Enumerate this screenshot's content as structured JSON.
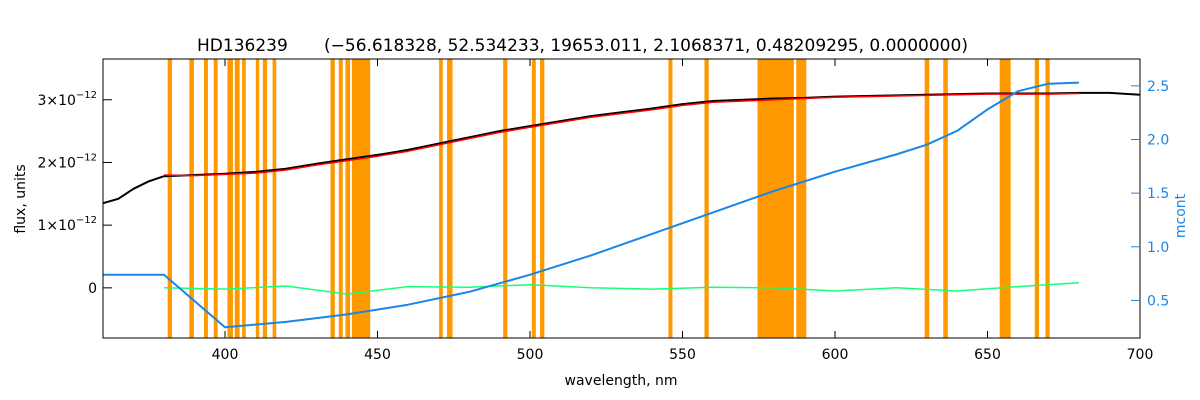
{
  "chart_data": {
    "type": "line",
    "title": {
      "star": "HD136239",
      "params": "(−56.618328, 52.534233, 19653.011, 2.1068371, 0.48209295, 0.0000000)"
    },
    "xlabel": "wavelength, nm",
    "ylabel": "flux, units",
    "ylabel_right": "mcont",
    "xlim": [
      360,
      700
    ],
    "ylim": [
      -8e-13,
      3.65e-12
    ],
    "ylim_right": [
      0.15,
      2.75
    ],
    "x_ticks": [
      400,
      450,
      500,
      550,
      600,
      650,
      700
    ],
    "y_ticks": [
      {
        "value": 0,
        "mantissa": "0",
        "exp": ""
      },
      {
        "value": 1e-12,
        "mantissa": "1×10",
        "exp": "−12"
      },
      {
        "value": 2e-12,
        "mantissa": "2×10",
        "exp": "−12"
      },
      {
        "value": 3e-12,
        "mantissa": "3×10",
        "exp": "−12"
      }
    ],
    "y_ticks_right": [
      "0.5",
      "1.0",
      "1.5",
      "2.0",
      "2.5"
    ],
    "colors": {
      "observed": "#000000",
      "model": "#ff0000",
      "model_alt": "#ffff00",
      "residual": "#19ff7a",
      "mcont": "#1a86e6",
      "masks": "#ff9900",
      "axis": "#000000"
    },
    "masked_regions": [
      [
        381.2,
        382.6
      ],
      [
        388.3,
        389.8
      ],
      [
        393.1,
        394.4
      ],
      [
        396.3,
        397.6
      ],
      [
        400.8,
        402.6
      ],
      [
        403.2,
        404.8
      ],
      [
        405.6,
        406.8
      ],
      [
        410.1,
        411.2
      ],
      [
        412.4,
        413.8
      ],
      [
        415.6,
        416.8
      ],
      [
        434.6,
        436.0
      ],
      [
        437.3,
        438.6
      ],
      [
        439.5,
        441.0
      ],
      [
        441.6,
        447.6
      ],
      [
        470.2,
        471.4
      ],
      [
        472.8,
        474.6
      ],
      [
        491.2,
        492.6
      ],
      [
        500.6,
        501.9
      ],
      [
        503.3,
        504.7
      ],
      [
        545.4,
        546.7
      ],
      [
        557.2,
        558.6
      ],
      [
        574.6,
        586.5
      ],
      [
        587.3,
        590.6
      ],
      [
        629.4,
        630.9
      ],
      [
        635.5,
        637.0
      ],
      [
        654.0,
        657.6
      ],
      [
        665.5,
        666.9
      ],
      [
        669.0,
        670.4
      ]
    ],
    "series": [
      {
        "id": "observed",
        "x": [
          360,
          365,
          370,
          375,
          380,
          390,
          400,
          410,
          420,
          430,
          440,
          450,
          460,
          470,
          480,
          490,
          500,
          510,
          520,
          530,
          540,
          550,
          560,
          570,
          580,
          590,
          600,
          610,
          620,
          630,
          640,
          650,
          660,
          670,
          680,
          690,
          700
        ],
        "y": [
          1.35e-12,
          1.42e-12,
          1.58e-12,
          1.7e-12,
          1.78e-12,
          1.8e-12,
          1.82e-12,
          1.85e-12,
          1.9e-12,
          1.98e-12,
          2.05e-12,
          2.12e-12,
          2.2e-12,
          2.3e-12,
          2.4e-12,
          2.5e-12,
          2.58e-12,
          2.66e-12,
          2.74e-12,
          2.8e-12,
          2.86e-12,
          2.93e-12,
          2.98e-12,
          3e-12,
          3.02e-12,
          3.03e-12,
          3.05e-12,
          3.06e-12,
          3.07e-12,
          3.08e-12,
          3.09e-12,
          3.1e-12,
          3.1e-12,
          3.1e-12,
          3.11e-12,
          3.11e-12,
          3.08e-12
        ]
      },
      {
        "id": "model",
        "x": [
          380,
          390,
          400,
          410,
          420,
          430,
          440,
          450,
          460,
          470,
          480,
          490,
          500,
          510,
          520,
          530,
          540,
          550,
          560,
          570,
          580,
          590,
          600,
          610,
          620,
          630,
          640,
          650,
          660,
          670,
          680
        ],
        "y": [
          1.8e-12,
          1.79e-12,
          1.81e-12,
          1.83e-12,
          1.88e-12,
          1.96e-12,
          2.03e-12,
          2.1e-12,
          2.18e-12,
          2.28e-12,
          2.38e-12,
          2.48e-12,
          2.56e-12,
          2.64e-12,
          2.72e-12,
          2.78e-12,
          2.84e-12,
          2.91e-12,
          2.96e-12,
          2.98e-12,
          3e-12,
          3.02e-12,
          3.04e-12,
          3.05e-12,
          3.06e-12,
          3.07e-12,
          3.08e-12,
          3.09e-12,
          3.09e-12,
          3.09e-12,
          3.1e-12
        ]
      },
      {
        "id": "residual",
        "x": [
          380,
          400,
          420,
          440,
          460,
          480,
          500,
          520,
          540,
          560,
          580,
          600,
          620,
          640,
          660,
          680
        ],
        "y": [
          0.0,
          -2e-14,
          3e-14,
          -1e-13,
          2e-14,
          1e-14,
          5e-14,
          0.0,
          -2e-14,
          1e-14,
          0.0,
          -5e-14,
          0.0,
          -5e-14,
          2e-14,
          8e-14
        ]
      },
      {
        "id": "mcont",
        "x": [
          360,
          380,
          400,
          420,
          440,
          460,
          480,
          500,
          520,
          540,
          560,
          580,
          600,
          620,
          630,
          640,
          650,
          660,
          670,
          680
        ],
        "y": [
          0.74,
          0.74,
          0.25,
          0.3,
          0.37,
          0.46,
          0.58,
          0.74,
          0.92,
          1.12,
          1.32,
          1.52,
          1.7,
          1.86,
          1.95,
          2.08,
          2.28,
          2.45,
          2.52,
          2.53
        ]
      }
    ]
  }
}
